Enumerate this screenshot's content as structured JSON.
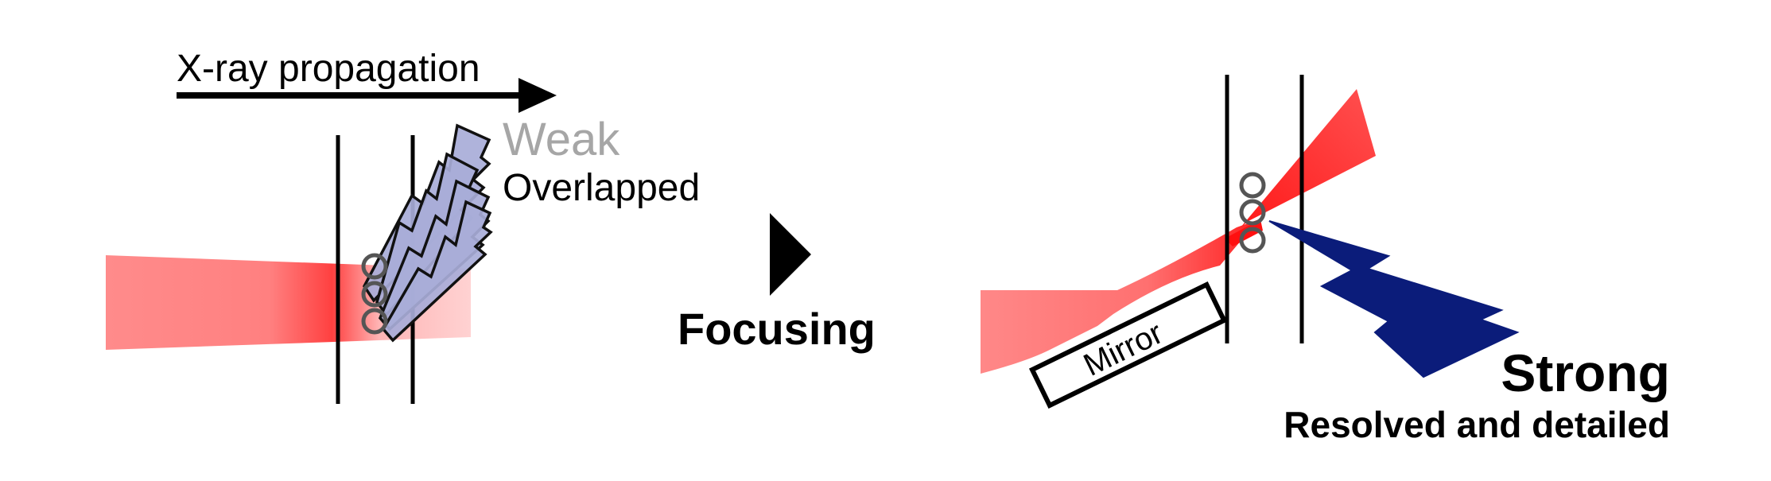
{
  "labels": {
    "propagation": "X-ray propagation",
    "weak": "Weak",
    "overlapped": "Overlapped",
    "focusing": "Focusing",
    "mirror": "Mirror",
    "strong": "Strong",
    "resolved": "Resolved and detailed"
  },
  "colors": {
    "beam": "#ff3b3b",
    "weak_signal_fill": "#a8acd8",
    "weak_label": "#a6a6a6",
    "strong_signal_fill": "#0b1c7a",
    "line": "#000000",
    "particle_stroke": "#555555"
  },
  "icons": {
    "arrow": "arrow-right-icon",
    "focusing_marker": "triangle-right-icon",
    "weak_signal": "lightning-bolt-icon",
    "strong_signal": "lightning-bolt-icon"
  }
}
